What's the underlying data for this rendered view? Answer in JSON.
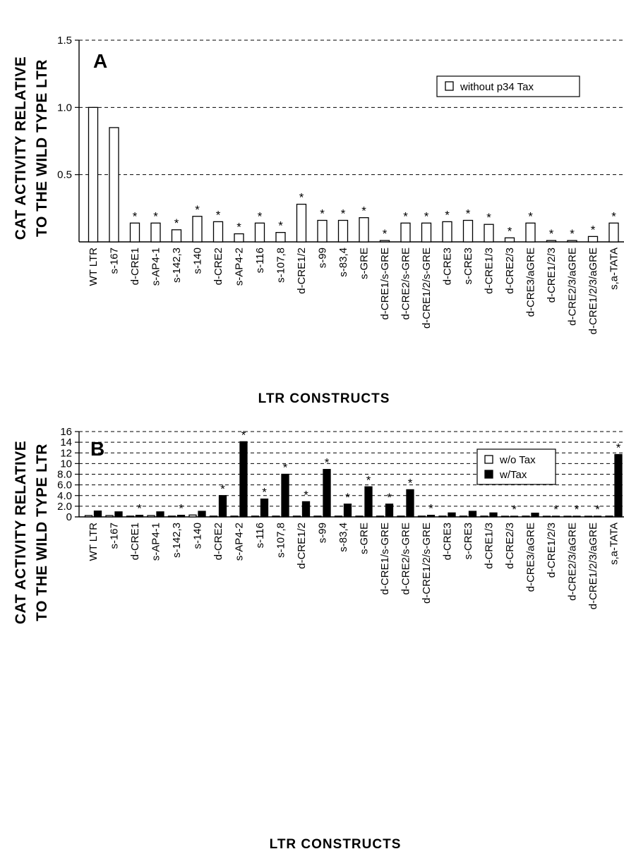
{
  "chart_data": [
    {
      "panel": "A",
      "type": "bar",
      "ylabel_line1": "CAT ACTIVITY RELATIVE",
      "ylabel_line2": "TO THE WILD TYPE LTR",
      "xlabel": "LTR CONSTRUCTS",
      "ylim": [
        0,
        1.5
      ],
      "yticks": [
        "0.5",
        "1.0",
        "1.5"
      ],
      "grid": "horizontal dashed",
      "legend_position": "top-right",
      "categories": [
        "WT LTR",
        "s-167",
        "d-CRE1",
        "s-AP4-1",
        "s-142,3",
        "s-140",
        "d-CRE2",
        "s-AP4-2",
        "s-116",
        "s-107,8",
        "d-CRE1/2",
        "s-99",
        "s-83,4",
        "s-GRE",
        "d-CRE1/s-GRE",
        "d-CRE2/s-GRE",
        "d-CRE1/2/s-GRE",
        "d-CRE3",
        "s-CRE3",
        "d-CRE1/3",
        "d-CRE2/3",
        "d-CRE3/aGRE",
        "d-CRE1/2/3",
        "d-CRE2/3/aGRE",
        "d-CRE1/2/3/aGRE",
        "s,a-TATA"
      ],
      "series": [
        {
          "name": "without p34 Tax",
          "fill": "open",
          "values": [
            1.0,
            0.85,
            0.14,
            0.14,
            0.09,
            0.19,
            0.15,
            0.06,
            0.14,
            0.07,
            0.28,
            0.16,
            0.16,
            0.18,
            0.01,
            0.14,
            0.14,
            0.15,
            0.16,
            0.13,
            0.03,
            0.14,
            0.01,
            0.01,
            0.04,
            0.14
          ],
          "significant": [
            false,
            false,
            true,
            true,
            true,
            true,
            true,
            true,
            true,
            true,
            true,
            true,
            true,
            true,
            true,
            true,
            true,
            true,
            true,
            true,
            true,
            true,
            true,
            true,
            true,
            true
          ]
        }
      ]
    },
    {
      "panel": "B",
      "type": "bar",
      "ylabel_line1": "CAT ACTIVITY RELATIVE",
      "ylabel_line2": "TO THE WILD TYPE LTR",
      "xlabel": "LTR CONSTRUCTS",
      "ylim": [
        0,
        16
      ],
      "yticks": [
        "0",
        "2.0",
        "4.0",
        "6.0",
        "8.0",
        "10",
        "12",
        "14",
        "16"
      ],
      "grid": "horizontal dashed",
      "legend_position": "top-right",
      "categories": [
        "WT LTR",
        "s-167",
        "d-CRE1",
        "s-AP4-1",
        "s-142,3",
        "s-140",
        "d-CRE2",
        "s-AP4-2",
        "s-116",
        "s-107,8",
        "d-CRE1/2",
        "s-99",
        "s-83,4",
        "s-GRE",
        "d-CRE1/s-GRE",
        "d-CRE2/s-GRE",
        "d-CRE1/2/s-GRE",
        "d-CRE3",
        "s-CRE3",
        "d-CRE1/3",
        "d-CRE2/3",
        "d-CRE3/aGRE",
        "d-CRE1/2/3",
        "d-CRE2/3/aGRE",
        "d-CRE1/2/3/aGRE",
        "s,a-TATA"
      ],
      "series": [
        {
          "name": "w/o Tax",
          "fill": "open",
          "values": [
            0.25,
            0.25,
            0.15,
            0.25,
            0.15,
            0.35,
            0.15,
            0.15,
            0.15,
            0.15,
            0.15,
            0.15,
            0.15,
            0.15,
            0.15,
            0.15,
            0.15,
            0.15,
            0.15,
            0.15,
            0.1,
            0.15,
            0.05,
            0.05,
            0.05,
            0.15
          ]
        },
        {
          "name": "w/Tax",
          "fill": "solid",
          "values": [
            1.1,
            0.95,
            0.3,
            0.95,
            0.3,
            1.05,
            4.0,
            14.1,
            3.35,
            8.0,
            2.85,
            8.9,
            2.4,
            5.65,
            2.4,
            5.1,
            0.3,
            0.75,
            1.05,
            0.75,
            0.1,
            0.7,
            0.1,
            0.05,
            0.1,
            11.7
          ],
          "significant": [
            false,
            false,
            true,
            false,
            true,
            false,
            true,
            true,
            true,
            true,
            true,
            true,
            true,
            true,
            true,
            true,
            true,
            false,
            false,
            false,
            true,
            false,
            true,
            true,
            true,
            true
          ]
        }
      ]
    }
  ]
}
